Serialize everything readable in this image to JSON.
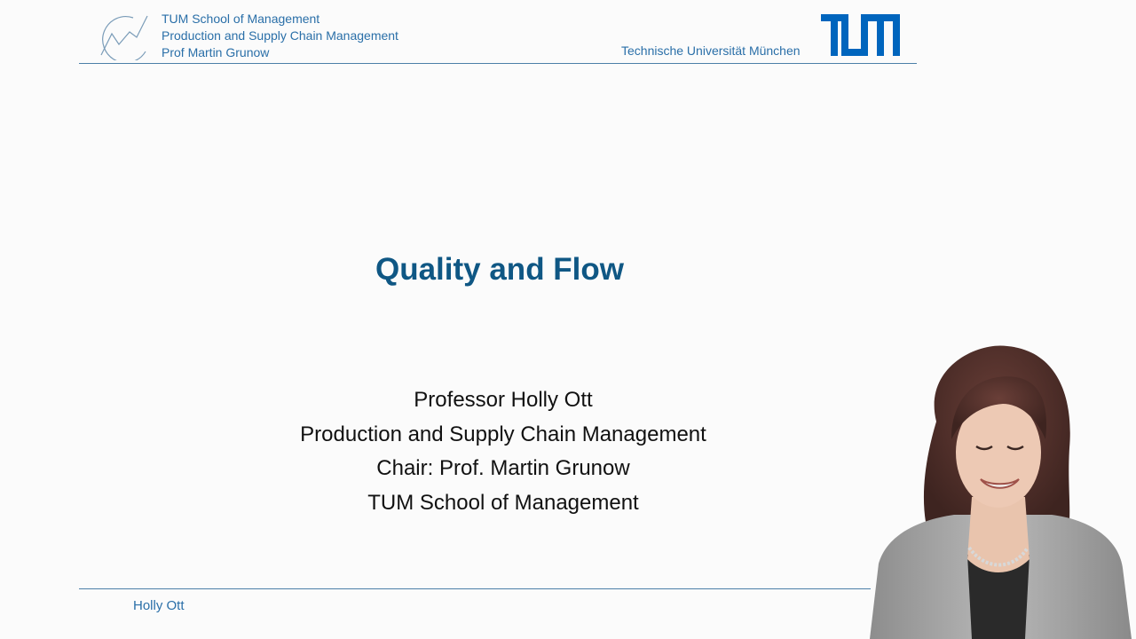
{
  "header": {
    "lines": [
      "TUM School of Management",
      "Production and Supply Chain Management",
      "Prof Martin Grunow"
    ],
    "university": "Technische Universität München",
    "logo_text": "TUM"
  },
  "slide": {
    "title": "Quality and Flow",
    "presenter_lines": [
      "Professor Holly Ott",
      "Production and Supply Chain Management",
      "Chair: Prof. Martin Grunow",
      "TUM School of Management"
    ]
  },
  "footer": {
    "author": "Holly Ott"
  },
  "colors": {
    "accent": "#2a6fa8",
    "title": "#0f5784",
    "logo": "#0065bd"
  },
  "icons": {
    "chair_logo": "chart-curve-icon",
    "university_logo": "tum-logo"
  }
}
